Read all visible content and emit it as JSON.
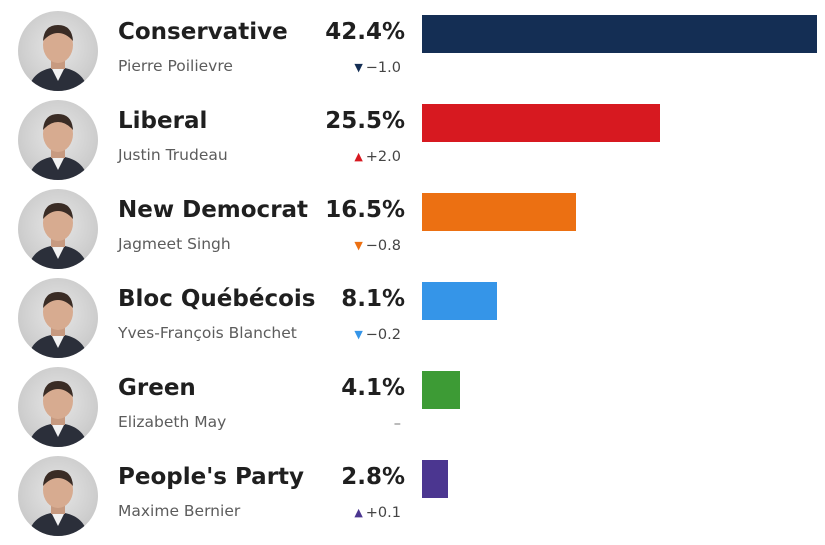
{
  "colors": {
    "conservative": "#142e54",
    "liberal": "#d71920",
    "ndp": "#ec7012",
    "bloc": "#3595e8",
    "green": "#3d9b35",
    "ppc": "#4b3690"
  },
  "chart_data": {
    "type": "bar",
    "orientation": "horizontal",
    "unit": "%",
    "categories": [
      "Conservative",
      "Liberal",
      "New Democrat",
      "Bloc Québécois",
      "Green",
      "People's Party"
    ],
    "values": [
      42.4,
      25.5,
      16.5,
      8.1,
      4.1,
      2.8
    ],
    "xlim": [
      0,
      42.4
    ],
    "rows": [
      {
        "party": "Conservative",
        "leader": "Pierre Poilievre",
        "value": 42.4,
        "value_label": "42.4%",
        "change_label": "−1.0",
        "direction": "down",
        "color": "#142e54",
        "avatar_icon": "portrait-photo"
      },
      {
        "party": "Liberal",
        "leader": "Justin Trudeau",
        "value": 25.5,
        "value_label": "25.5%",
        "change_label": "+2.0",
        "direction": "up",
        "color": "#d71920",
        "avatar_icon": "portrait-photo"
      },
      {
        "party": "New Democrat",
        "leader": "Jagmeet Singh",
        "value": 16.5,
        "value_label": "16.5%",
        "change_label": "−0.8",
        "direction": "down",
        "color": "#ec7012",
        "avatar_icon": "portrait-photo"
      },
      {
        "party": "Bloc Québécois",
        "leader": "Yves-François Blanchet",
        "value": 8.1,
        "value_label": "8.1%",
        "change_label": "−0.2",
        "direction": "down",
        "color": "#3595e8",
        "avatar_icon": "portrait-photo"
      },
      {
        "party": "Green",
        "leader": "Elizabeth May",
        "value": 4.1,
        "value_label": "4.1%",
        "change_label": "–",
        "direction": "none",
        "color": "#3d9b35",
        "avatar_icon": "portrait-photo"
      },
      {
        "party": "People's Party",
        "leader": "Maxime Bernier",
        "value": 2.8,
        "value_label": "2.8%",
        "change_label": "+0.1",
        "direction": "up",
        "color": "#4b3690",
        "avatar_icon": "portrait-photo"
      }
    ]
  }
}
